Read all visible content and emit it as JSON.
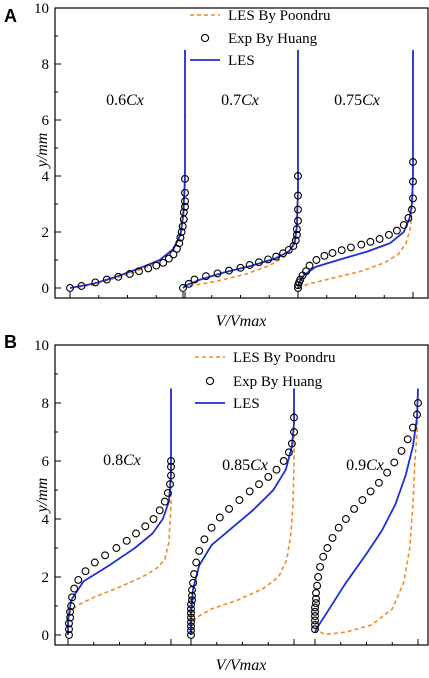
{
  "chart_data": [
    {
      "type": "line",
      "panel_label": "A",
      "xlabel": "V/Vmax",
      "ylabel": "y/mm",
      "ylim": [
        0,
        10
      ],
      "yticks": [
        0,
        2,
        4,
        6,
        8,
        10
      ],
      "grid": false,
      "legend_position": "top-right",
      "legend": [
        {
          "name": "LES By Poondru",
          "style": "dashed",
          "color": "#f28c28"
        },
        {
          "name": "Exp By Huang",
          "style": "circle",
          "color": "#000000"
        },
        {
          "name": "LES",
          "style": "solid",
          "color": "#1f2fd6"
        }
      ],
      "stations": [
        {
          "label": "0.6Cx",
          "poondru": {
            "u": [
              0.0,
              0.18,
              0.35,
              0.55,
              0.72,
              0.85,
              0.93,
              0.97,
              1.0,
              1.0
            ],
            "y": [
              0,
              0.1,
              0.3,
              0.55,
              0.85,
              1.2,
              1.6,
              2.2,
              3.5,
              8.5
            ]
          },
          "exp": {
            "u": [
              0.0,
              0.1,
              0.22,
              0.32,
              0.42,
              0.52,
              0.6,
              0.68,
              0.75,
              0.81,
              0.86,
              0.9,
              0.93,
              0.95,
              0.96,
              0.97,
              0.98,
              0.99,
              0.99,
              1.0,
              1.0,
              1.0,
              1.0
            ],
            "y": [
              0.0,
              0.07,
              0.2,
              0.3,
              0.4,
              0.5,
              0.6,
              0.7,
              0.8,
              0.9,
              1.05,
              1.2,
              1.4,
              1.6,
              1.8,
              2.0,
              2.2,
              2.45,
              2.7,
              2.9,
              3.1,
              3.4,
              3.9
            ]
          },
          "les": {
            "u": [
              0.0,
              0.2,
              0.4,
              0.6,
              0.78,
              0.9,
              0.96,
              0.985,
              1.0,
              1.0
            ],
            "y": [
              0,
              0.15,
              0.4,
              0.7,
              1.0,
              1.4,
              1.9,
              2.6,
              4.0,
              8.5
            ]
          }
        },
        {
          "label": "0.7Cx",
          "poondru": {
            "u": [
              0.0,
              0.02,
              0.1,
              0.3,
              0.55,
              0.75,
              0.88,
              0.95,
              0.98,
              1.0,
              1.0
            ],
            "y": [
              0,
              0.05,
              0.1,
              0.25,
              0.5,
              0.8,
              1.1,
              1.5,
              2.0,
              3.5,
              8.5
            ]
          },
          "exp": {
            "u": [
              0.0,
              0.05,
              0.1,
              0.2,
              0.3,
              0.4,
              0.5,
              0.58,
              0.66,
              0.74,
              0.81,
              0.87,
              0.92,
              0.96,
              0.98,
              0.99,
              0.99,
              1.0,
              1.0,
              1.0,
              1.0
            ],
            "y": [
              0.0,
              0.15,
              0.3,
              0.42,
              0.52,
              0.62,
              0.72,
              0.82,
              0.92,
              1.02,
              1.12,
              1.24,
              1.36,
              1.5,
              1.7,
              1.9,
              2.1,
              2.4,
              2.8,
              3.3,
              4.0
            ]
          },
          "les": {
            "u": [
              0.0,
              0.03,
              0.15,
              0.35,
              0.6,
              0.8,
              0.92,
              0.97,
              0.99,
              1.0,
              1.0
            ],
            "y": [
              0,
              0.1,
              0.3,
              0.55,
              0.8,
              1.05,
              1.3,
              1.6,
              2.2,
              3.5,
              8.5
            ]
          }
        },
        {
          "label": "0.75Cx",
          "poondru": {
            "u": [
              0.0,
              0.02,
              0.1,
              0.3,
              0.55,
              0.75,
              0.87,
              0.94,
              0.98,
              1.0,
              1.0
            ],
            "y": [
              0,
              0.05,
              0.15,
              0.35,
              0.6,
              0.9,
              1.2,
              1.6,
              2.2,
              3.5,
              8.5
            ]
          },
          "exp": {
            "u": [
              0.0,
              0.0,
              0.01,
              0.02,
              0.04,
              0.07,
              0.1,
              0.16,
              0.23,
              0.3,
              0.38,
              0.46,
              0.55,
              0.63,
              0.71,
              0.79,
              0.86,
              0.92,
              0.96,
              0.99,
              1.0,
              1.0,
              1.0
            ],
            "y": [
              0.0,
              0.1,
              0.2,
              0.3,
              0.45,
              0.6,
              0.8,
              1.0,
              1.15,
              1.25,
              1.35,
              1.45,
              1.55,
              1.65,
              1.75,
              1.9,
              2.05,
              2.25,
              2.5,
              2.8,
              3.2,
              3.8,
              4.5
            ]
          },
          "les": {
            "u": [
              0.0,
              0.01,
              0.05,
              0.15,
              0.35,
              0.6,
              0.8,
              0.92,
              0.97,
              0.99,
              1.0,
              1.0
            ],
            "y": [
              0,
              0.2,
              0.45,
              0.75,
              1.0,
              1.3,
              1.6,
              2.0,
              2.5,
              3.0,
              4.0,
              8.5
            ]
          }
        }
      ]
    },
    {
      "type": "line",
      "panel_label": "B",
      "xlabel": "V/Vmax",
      "ylabel": "y/mm",
      "ylim": [
        0,
        10
      ],
      "yticks": [
        0,
        2,
        4,
        6,
        8,
        10
      ],
      "grid": false,
      "legend_position": "top-right",
      "legend": [
        {
          "name": "LES By Poondru",
          "style": "dashed",
          "color": "#f28c28"
        },
        {
          "name": "Exp By Huang",
          "style": "circle",
          "color": "#000000"
        },
        {
          "name": "LES",
          "style": "solid",
          "color": "#1f2fd6"
        }
      ],
      "stations": [
        {
          "label": "0.8Cx",
          "poondru": {
            "u": [
              0.0,
              0.0,
              0.02,
              0.08,
              0.25,
              0.5,
              0.72,
              0.86,
              0.94,
              0.98,
              1.0,
              1.0
            ],
            "y": [
              0,
              0.5,
              0.8,
              1.0,
              1.3,
              1.65,
              2.0,
              2.3,
              2.6,
              3.2,
              4.5,
              8.5
            ]
          },
          "exp": {
            "u": [
              0.01,
              0.01,
              0.01,
              0.02,
              0.02,
              0.03,
              0.04,
              0.06,
              0.1,
              0.17,
              0.26,
              0.36,
              0.47,
              0.57,
              0.66,
              0.75,
              0.83,
              0.89,
              0.94,
              0.97,
              0.99,
              1.0,
              1.0,
              1.0
            ],
            "y": [
              0.0,
              0.2,
              0.4,
              0.6,
              0.8,
              1.0,
              1.3,
              1.6,
              1.9,
              2.2,
              2.5,
              2.75,
              3.0,
              3.25,
              3.5,
              3.75,
              4.0,
              4.3,
              4.6,
              4.9,
              5.2,
              5.5,
              5.8,
              6.0
            ]
          },
          "les": {
            "u": [
              0.0,
              0.0,
              0.03,
              0.15,
              0.4,
              0.65,
              0.82,
              0.92,
              0.98,
              1.0,
              1.0
            ],
            "y": [
              0,
              0.5,
              1.2,
              1.85,
              2.4,
              3.0,
              3.5,
              4.0,
              4.6,
              5.5,
              8.5
            ]
          }
        },
        {
          "label": "0.85Cx",
          "poondru": {
            "u": [
              0.0,
              0.0,
              0.05,
              0.2,
              0.45,
              0.7,
              0.85,
              0.93,
              0.97,
              0.99,
              1.0,
              1.0
            ],
            "y": [
              0,
              0.3,
              0.6,
              0.9,
              1.2,
              1.6,
              2.0,
              2.6,
              3.5,
              4.5,
              6.0,
              8.5
            ]
          },
          "exp": {
            "u": [
              0.0,
              0.0,
              0.0,
              0.0,
              0.0,
              0.0,
              0.0,
              0.0,
              0.01,
              0.01,
              0.01,
              0.02,
              0.03,
              0.05,
              0.08,
              0.13,
              0.2,
              0.28,
              0.37,
              0.47,
              0.57,
              0.66,
              0.75,
              0.83,
              0.9,
              0.95,
              0.98,
              1.0,
              1.0
            ],
            "y": [
              0.0,
              0.15,
              0.3,
              0.45,
              0.6,
              0.75,
              0.9,
              1.05,
              1.2,
              1.35,
              1.55,
              1.8,
              2.1,
              2.5,
              2.9,
              3.3,
              3.7,
              4.05,
              4.35,
              4.65,
              4.95,
              5.2,
              5.45,
              5.7,
              6.0,
              6.3,
              6.6,
              7.0,
              7.5
            ]
          },
          "les": {
            "u": [
              0.0,
              0.0,
              0.02,
              0.08,
              0.2,
              0.4,
              0.6,
              0.8,
              0.92,
              0.98,
              1.0,
              1.0
            ],
            "y": [
              0,
              0.8,
              1.6,
              2.4,
              3.1,
              3.7,
              4.3,
              5.0,
              5.7,
              6.5,
              7.3,
              8.5
            ]
          }
        },
        {
          "label": "0.9Cx",
          "poondru": {
            "u": [
              0.0,
              0.02,
              0.1,
              0.3,
              0.55,
              0.75,
              0.86,
              0.92,
              0.95,
              0.97,
              0.99,
              1.0
            ],
            "y": [
              0.5,
              0.15,
              0.02,
              0.1,
              0.35,
              0.9,
              1.8,
              3.0,
              4.5,
              6.0,
              7.0,
              8.5
            ]
          },
          "exp": {
            "u": [
              0.0,
              0.0,
              0.0,
              0.0,
              0.0,
              0.0,
              0.01,
              0.01,
              0.01,
              0.02,
              0.03,
              0.05,
              0.08,
              0.12,
              0.17,
              0.23,
              0.3,
              0.38,
              0.46,
              0.54,
              0.62,
              0.7,
              0.77,
              0.84,
              0.9,
              0.95,
              0.99,
              1.0
            ],
            "y": [
              0.2,
              0.35,
              0.5,
              0.65,
              0.8,
              0.95,
              1.1,
              1.25,
              1.45,
              1.7,
              2.0,
              2.35,
              2.7,
              3.0,
              3.35,
              3.7,
              4.0,
              4.35,
              4.65,
              4.95,
              5.25,
              5.6,
              5.95,
              6.35,
              6.75,
              7.15,
              7.6,
              8.0
            ]
          },
          "les": {
            "u": [
              0.0,
              0.03,
              0.12,
              0.3,
              0.5,
              0.65,
              0.78,
              0.88,
              0.95,
              0.99,
              1.0
            ],
            "y": [
              0.1,
              0.3,
              0.8,
              1.8,
              2.8,
              3.6,
              4.5,
              5.5,
              6.5,
              7.5,
              8.5
            ]
          }
        }
      ]
    }
  ]
}
